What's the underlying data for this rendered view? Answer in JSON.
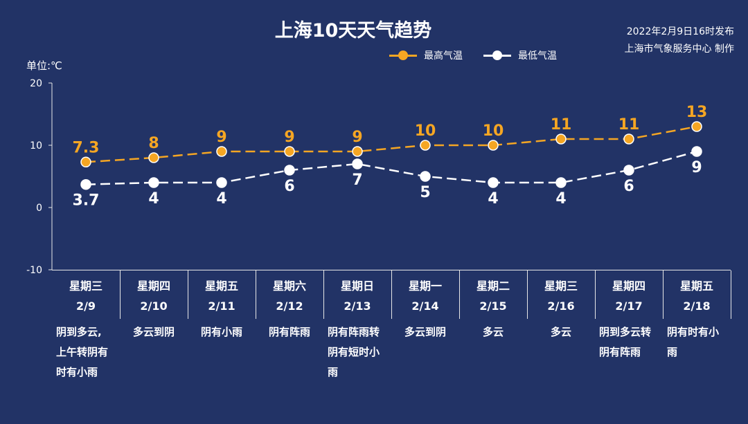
{
  "title": "上海10天天气趋势",
  "publish": {
    "line1": "2022年2月9日16时发布",
    "line2": "上海市气象服务中心 制作"
  },
  "unit_label": "单位:℃",
  "colors": {
    "high": "#f5a623",
    "low": "#ffffff",
    "background": "#223366"
  },
  "chart_data": {
    "type": "line",
    "ylim": [
      -10,
      20
    ],
    "yticks": [
      "20",
      "10",
      "0",
      "-10"
    ],
    "categories": [
      "2/9",
      "2/10",
      "2/11",
      "2/12",
      "2/13",
      "2/14",
      "2/15",
      "2/16",
      "2/17",
      "2/18"
    ],
    "series": [
      {
        "name": "最高气温",
        "values": [
          7.3,
          8,
          9,
          9,
          9,
          10,
          10,
          11,
          11,
          13
        ],
        "labels": [
          "7.3",
          "8",
          "9",
          "9",
          "9",
          "10",
          "10",
          "11",
          "11",
          "13"
        ],
        "style": "dashed"
      },
      {
        "name": "最低气温",
        "values": [
          3.7,
          4,
          4,
          6,
          7,
          5,
          4,
          4,
          6,
          9
        ],
        "labels": [
          "3.7",
          "4",
          "4",
          "6",
          "7",
          "5",
          "4",
          "4",
          "6",
          "9"
        ],
        "style": "dashed"
      }
    ],
    "legend_position": "top"
  },
  "days": [
    {
      "weekday": "星期三",
      "date": "2/9",
      "condition": [
        "阴到多云,",
        "上午转阴有",
        "时有小雨"
      ]
    },
    {
      "weekday": "星期四",
      "date": "2/10",
      "condition": [
        "多云到阴"
      ]
    },
    {
      "weekday": "星期五",
      "date": "2/11",
      "condition": [
        "阴有小雨"
      ]
    },
    {
      "weekday": "星期六",
      "date": "2/12",
      "condition": [
        "阴有阵雨"
      ]
    },
    {
      "weekday": "星期日",
      "date": "2/13",
      "condition": [
        "阴有阵雨转",
        "阴有短时小",
        "雨"
      ]
    },
    {
      "weekday": "星期一",
      "date": "2/14",
      "condition": [
        "多云到阴"
      ]
    },
    {
      "weekday": "星期二",
      "date": "2/15",
      "condition": [
        "多云"
      ]
    },
    {
      "weekday": "星期三",
      "date": "2/16",
      "condition": [
        "多云"
      ]
    },
    {
      "weekday": "星期四",
      "date": "2/17",
      "condition": [
        "阴到多云转",
        "阴有阵雨"
      ]
    },
    {
      "weekday": "星期五",
      "date": "2/18",
      "condition": [
        "阴有时有小",
        "雨"
      ]
    }
  ]
}
